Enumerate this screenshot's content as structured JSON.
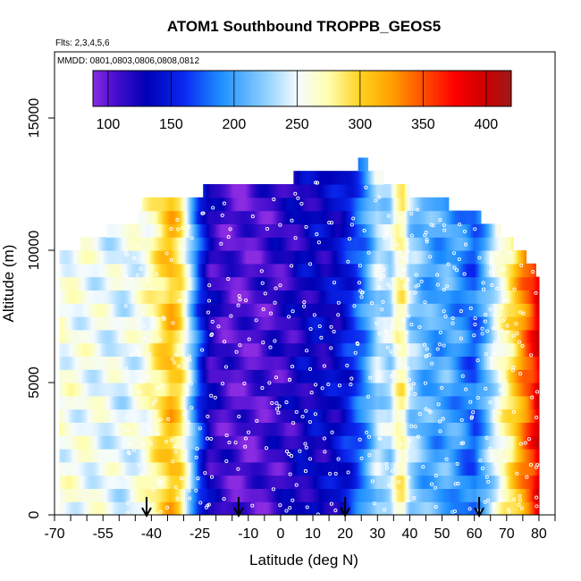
{
  "chart_data": {
    "type": "heatmap",
    "title": "ATOM1 Southbound TROPPB_GEOS5",
    "flights_note": "Flts: 2,3,4,5,6",
    "dates_note": "MMDD: 0801,0803,0806,0808,0812",
    "xlabel": "Latitude (deg N)",
    "ylabel": "Altitude (m)",
    "xlim": [
      -70,
      85
    ],
    "ylim": [
      0,
      17500
    ],
    "x_ticks": [
      -70,
      -55,
      -40,
      -25,
      -10,
      0,
      10,
      20,
      30,
      40,
      50,
      60,
      70,
      80
    ],
    "x_tick_labels": [
      "-70",
      "-55",
      "-40",
      "-25",
      "-10",
      "0",
      "10",
      "20",
      "30",
      "40",
      "50",
      "60",
      "70",
      "80"
    ],
    "x_minor_ticks": [
      -65,
      -60,
      -50,
      -45,
      -35,
      -30,
      -20,
      -15,
      -5,
      5,
      15,
      25,
      35,
      45,
      55,
      65,
      75,
      85
    ],
    "y_ticks": [
      0,
      5000,
      10000,
      15000
    ],
    "y_tick_labels": [
      "0",
      "5000",
      "10000",
      "15000"
    ],
    "colorbar": {
      "range": [
        88,
        420
      ],
      "ticks": [
        100,
        150,
        200,
        250,
        300,
        350,
        400
      ],
      "tick_labels": [
        "100",
        "150",
        "200",
        "250",
        "300",
        "350",
        "400"
      ],
      "stops": [
        {
          "v": 88,
          "c": "#8a2be2"
        },
        {
          "v": 105,
          "c": "#4a0fd0"
        },
        {
          "v": 130,
          "c": "#0000b4"
        },
        {
          "v": 160,
          "c": "#0a28f0"
        },
        {
          "v": 190,
          "c": "#1e90ff"
        },
        {
          "v": 225,
          "c": "#8fd0ff"
        },
        {
          "v": 250,
          "c": "#f4fbff"
        },
        {
          "v": 275,
          "c": "#ffffb0"
        },
        {
          "v": 300,
          "c": "#ffd21e"
        },
        {
          "v": 325,
          "c": "#ffa000"
        },
        {
          "v": 350,
          "c": "#ff5000"
        },
        {
          "v": 375,
          "c": "#ff0000"
        },
        {
          "v": 400,
          "c": "#c80000"
        },
        {
          "v": 420,
          "c": "#a01a1a"
        }
      ]
    },
    "arrow_latitudes": [
      -41.5,
      -13,
      20,
      61.5
    ],
    "field_profile": {
      "lat": [
        -70,
        -62,
        -55,
        -48,
        -42,
        -38,
        -34,
        -31,
        -28,
        -25,
        -22,
        -18,
        -14,
        -10,
        -6,
        -2,
        2,
        6,
        10,
        14,
        18,
        22,
        26,
        30,
        34,
        36,
        38,
        40,
        44,
        48,
        52,
        56,
        60,
        63,
        66,
        69,
        72,
        75,
        78,
        80
      ],
      "value": [
        258,
        255,
        250,
        245,
        260,
        285,
        310,
        290,
        230,
        165,
        120,
        108,
        103,
        102,
        105,
        112,
        115,
        125,
        132,
        130,
        138,
        158,
        190,
        235,
        232,
        270,
        275,
        230,
        210,
        200,
        205,
        190,
        175,
        205,
        240,
        270,
        295,
        330,
        360,
        395
      ]
    },
    "top_profile": {
      "lat": [
        -70,
        -64,
        -62,
        -60,
        -57,
        -54,
        -50,
        -44,
        -42,
        -36,
        -34,
        -28,
        -26,
        -24,
        -20,
        -16,
        -12,
        -8,
        -4,
        0,
        4,
        8,
        12,
        16,
        20,
        24,
        25,
        26,
        27,
        28,
        32,
        36,
        40,
        42,
        46,
        52,
        56,
        62,
        64,
        68,
        72,
        74,
        76,
        78,
        80
      ],
      "top_m": [
        10000,
        10000,
        10000,
        10500,
        10500,
        10500,
        11000,
        11000,
        12000,
        12000,
        12000,
        12000,
        12000,
        12000,
        12500,
        12500,
        12500,
        12500,
        12500,
        12500,
        12500,
        13000,
        13000,
        13000,
        13000,
        13000,
        13500,
        13500,
        13000,
        13000,
        12500,
        12500,
        12000,
        12000,
        12000,
        11500,
        11500,
        11000,
        11000,
        10500,
        10000,
        10000,
        9500,
        9500,
        8500
      ]
    },
    "series": [
      {
        "name": "",
        "values": []
      }
    ]
  }
}
